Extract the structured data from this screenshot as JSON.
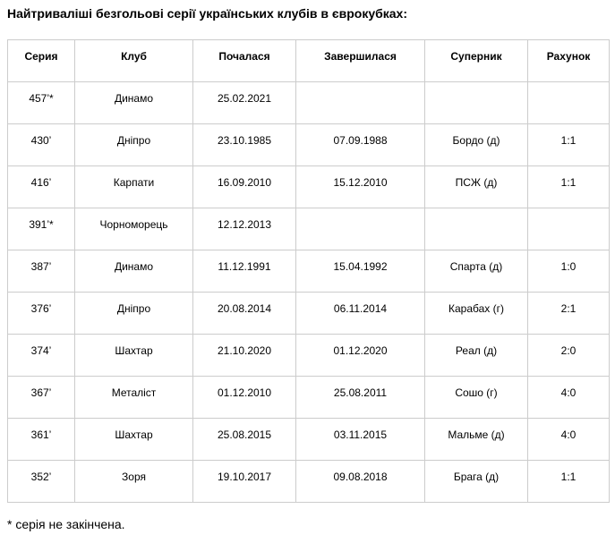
{
  "title": "Найтриваліші безгольові серії українських клубів в єврокубках:",
  "table": {
    "columns": [
      {
        "label": "Серия"
      },
      {
        "label": "Клуб"
      },
      {
        "label": "Почалася"
      },
      {
        "label": "Завершилася"
      },
      {
        "label": "Суперник"
      },
      {
        "label": "Рахунок"
      }
    ],
    "rows": [
      {
        "series": "457’*",
        "club": "Динамо",
        "started": "25.02.2021",
        "ended": "",
        "opponent": "",
        "score": ""
      },
      {
        "series": "430’",
        "club": "Дніпро",
        "started": "23.10.1985",
        "ended": "07.09.1988",
        "opponent": "Бордо (д)",
        "score": "1:1"
      },
      {
        "series": "416’",
        "club": "Карпати",
        "started": "16.09.2010",
        "ended": "15.12.2010",
        "opponent": "ПСЖ (д)",
        "score": "1:1"
      },
      {
        "series": "391’*",
        "club": "Чорноморець",
        "started": "12.12.2013",
        "ended": "",
        "opponent": "",
        "score": ""
      },
      {
        "series": "387’",
        "club": "Динамо",
        "started": "11.12.1991",
        "ended": "15.04.1992",
        "opponent": "Спарта (д)",
        "score": "1:0"
      },
      {
        "series": "376’",
        "club": "Дніпро",
        "started": "20.08.2014",
        "ended": "06.11.2014",
        "opponent": "Карабах (г)",
        "score": "2:1"
      },
      {
        "series": "374’",
        "club": "Шахтар",
        "started": "21.10.2020",
        "ended": "01.12.2020",
        "opponent": "Реал (д)",
        "score": "2:0"
      },
      {
        "series": "367’",
        "club": "Металіст",
        "started": "01.12.2010",
        "ended": "25.08.2011",
        "opponent": "Сошо (г)",
        "score": "4:0"
      },
      {
        "series": "361’",
        "club": "Шахтар",
        "started": "25.08.2015",
        "ended": "03.11.2015",
        "opponent": "Мальме (д)",
        "score": "4:0"
      },
      {
        "series": "352’",
        "club": "Зоря",
        "started": "19.10.2017",
        "ended": "09.08.2018",
        "opponent": "Брага (д)",
        "score": "1:1"
      }
    ]
  },
  "footnote": "* серія не закінчена.",
  "colors": {
    "border": "#cccccc",
    "text": "#000000",
    "background": "#ffffff"
  }
}
